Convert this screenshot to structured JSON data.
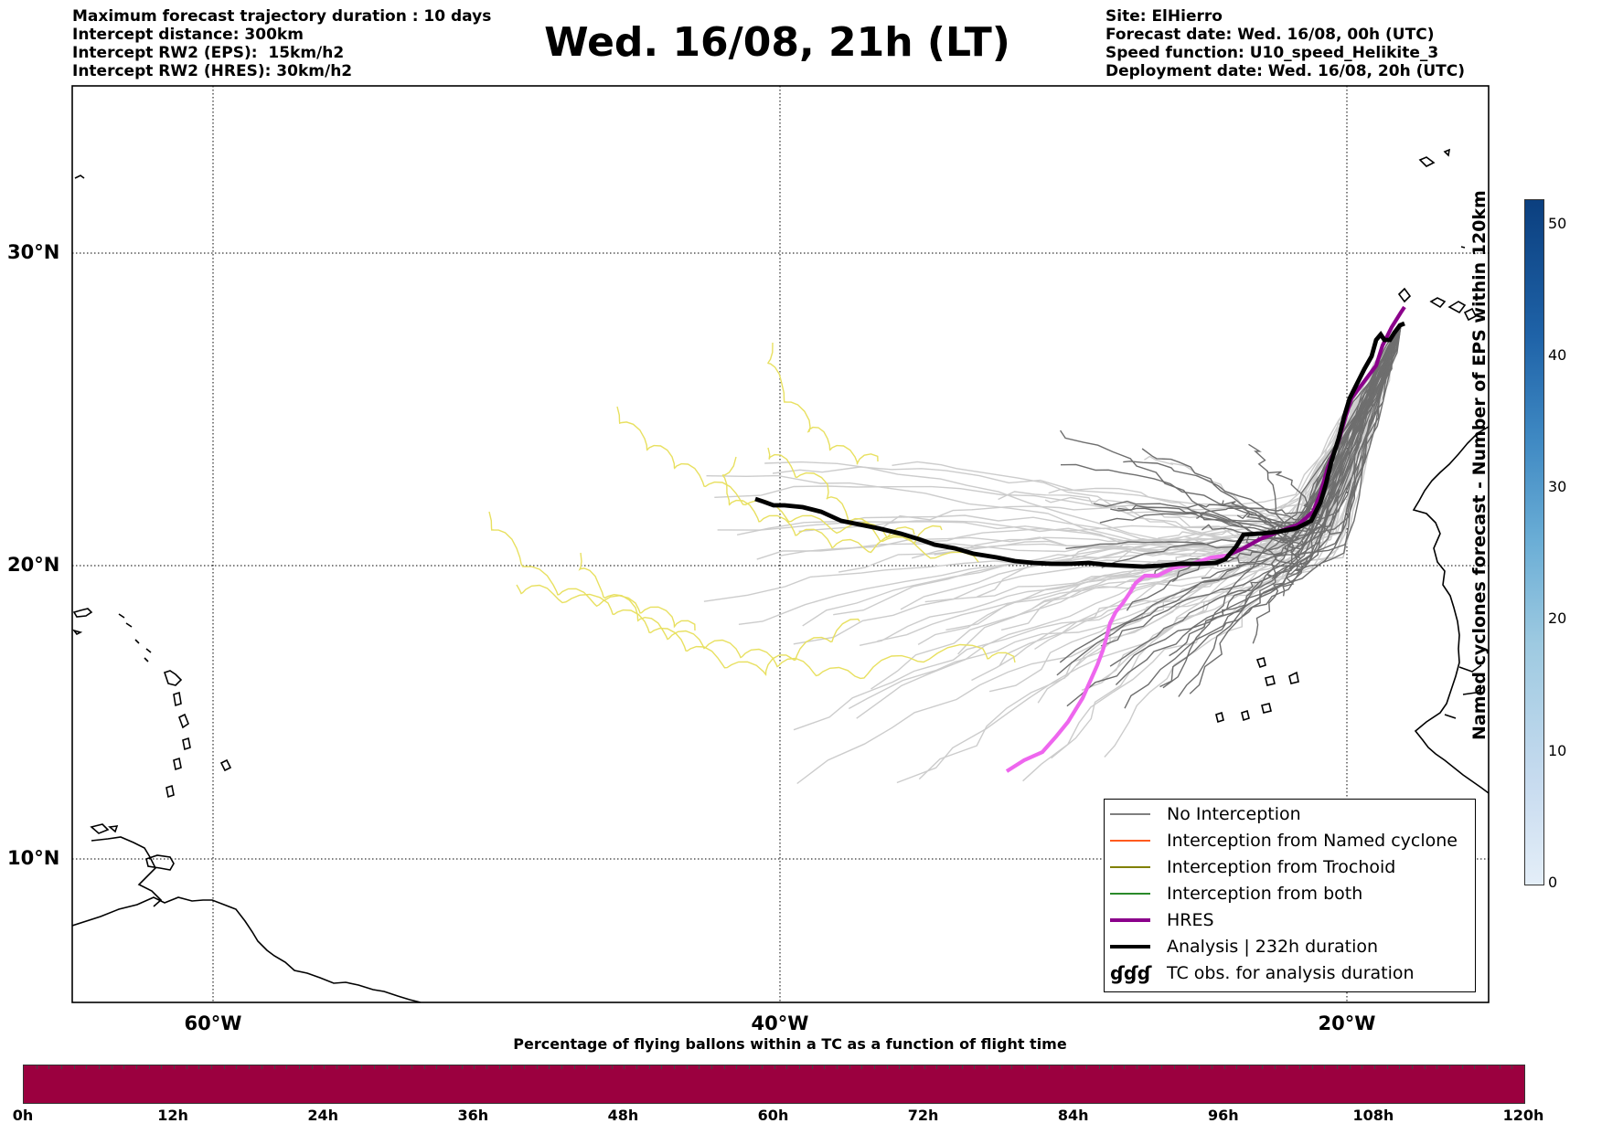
{
  "header": {
    "left_lines": [
      "Maximum forecast trajectory duration : 10 days",
      "Intercept distance: 300km",
      "Intercept RW2 (EPS):  15km/h2",
      "Intercept RW2 (HRES): 30km/h2"
    ],
    "title": "Wed. 16/08, 21h (LT)",
    "right_lines": [
      "Site: ElHierro",
      "Forecast date: Wed. 16/08, 00h (UTC)",
      "Speed function: U10_speed_Helikite_3",
      "Deployment date: Wed. 16/08, 20h (UTC)"
    ]
  },
  "map": {
    "lat_labels": [
      "30°N",
      "20°N",
      "10°N"
    ],
    "lon_labels": [
      "60°W",
      "40°W",
      "20°W"
    ],
    "gridlines": "dotted"
  },
  "legend": {
    "items": [
      {
        "label": "No Interception",
        "color": "#7f7f7f",
        "style": "thin"
      },
      {
        "label": "Interception from Named cyclone",
        "color": "#ff5a1e",
        "style": "thin"
      },
      {
        "label": "Interception from Trochoid",
        "color": "#808000",
        "style": "thin"
      },
      {
        "label": "Interception from both",
        "color": "#2a8a2a",
        "style": "thin"
      },
      {
        "label": "HRES",
        "color": "#8b008b",
        "style": "thick"
      },
      {
        "label": "Analysis | 232h duration",
        "color": "#000000",
        "style": "thick"
      },
      {
        "label": "TC obs. for analysis duration",
        "icon": "cyclone-symbol-icon"
      }
    ],
    "tc_symbol": "ɠɠɠ"
  },
  "colorbar_right": {
    "label": "Named cyclones forecast - Number of EPS within 120km",
    "ticks": [
      "0",
      "10",
      "20",
      "30",
      "40",
      "50"
    ],
    "colors": [
      "#e4eef8",
      "#0b3f7f"
    ]
  },
  "colorbar_bottom": {
    "title": "Percentage of flying ballons within a TC as a function of flight time",
    "ticks": [
      "0h",
      "12h",
      "24h",
      "36h",
      "48h",
      "60h",
      "72h",
      "84h",
      "96h",
      "108h",
      "120h"
    ],
    "color": "#9b003f"
  },
  "colors": {
    "eps_light": "#cccccc",
    "eps_dark": "#6e6e6e",
    "trochoid_obs": "#e8e060",
    "hres_early": "#ee66ee",
    "hres_late": "#8b008b",
    "analysis": "#000000"
  }
}
